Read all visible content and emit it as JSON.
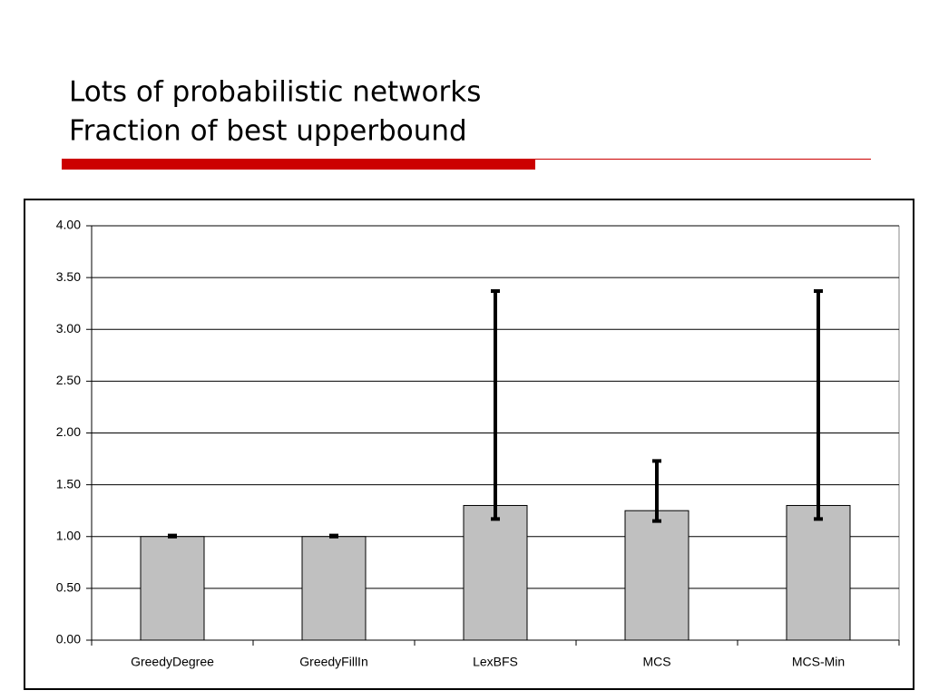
{
  "slide": {
    "title_lines": [
      "Lots of probabilistic networks",
      "Fraction of best upperbound"
    ]
  },
  "chart_data": {
    "type": "bar",
    "categories": [
      "GreedyDegree",
      "GreedyFillIn",
      "LexBFS",
      "MCS",
      "MCS-Min"
    ],
    "series": [
      {
        "color": "#c0c0c0",
        "values": [
          1.0,
          1.0,
          1.3,
          1.25,
          1.3
        ],
        "min": [
          1.0,
          1.0,
          1.17,
          1.15,
          1.17
        ],
        "max": [
          1.01,
          1.01,
          3.37,
          1.73,
          3.37
        ]
      }
    ],
    "ylim": [
      0,
      4
    ],
    "yticks": [
      {
        "value": 0,
        "label": "0.00"
      },
      {
        "value": 0.5,
        "label": "0.50"
      },
      {
        "value": 1,
        "label": "1.00"
      },
      {
        "value": 1.5,
        "label": "1.50"
      },
      {
        "value": 2,
        "label": "2.00"
      },
      {
        "value": 2.5,
        "label": "2.50"
      },
      {
        "value": 3,
        "label": "3.00"
      },
      {
        "value": 3.5,
        "label": "3.50"
      },
      {
        "value": 4,
        "label": "4.00"
      }
    ],
    "grid": true
  }
}
